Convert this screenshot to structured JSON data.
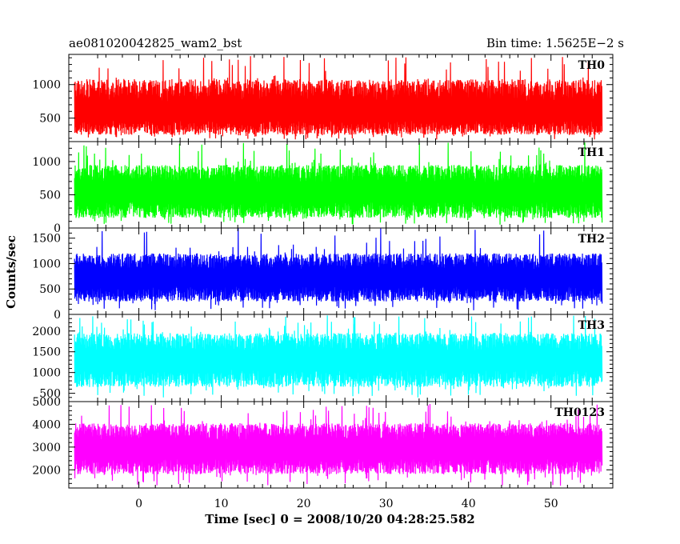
{
  "header": {
    "left_title": "ae081020042825_wam2_bst",
    "right_title": "Bin time: 1.5625E−2 s"
  },
  "axes": {
    "xlabel": "Time [sec] 0 = 2008/10/20 04:28:25.582",
    "ylabel": "Counts/sec"
  },
  "chart_data": [
    {
      "type": "line",
      "name": "TH0",
      "color": "#ff0000",
      "xlim": [
        -8.5,
        57.5
      ],
      "ylim": [
        150,
        1450
      ],
      "yticks": [
        500,
        1000
      ],
      "xticks": [
        0,
        10,
        20,
        30,
        40,
        50
      ],
      "x_range_data": [
        -7.8,
        56.2
      ],
      "level": 580,
      "base_min": 250,
      "base_max": 1080,
      "spike_max": 1450,
      "dip_min": 180
    },
    {
      "type": "line",
      "name": "TH1",
      "color": "#00ff00",
      "xlim": [
        -8.5,
        57.5
      ],
      "ylim": [
        0,
        1300
      ],
      "yticks": [
        0,
        500,
        1000
      ],
      "xticks": [
        0,
        10,
        20,
        30,
        40,
        50
      ],
      "x_range_data": [
        -7.8,
        56.2
      ],
      "level": 530,
      "base_min": 150,
      "base_max": 950,
      "spike_max": 1300,
      "dip_min": 50
    },
    {
      "type": "line",
      "name": "TH2",
      "color": "#0000ff",
      "xlim": [
        -8.5,
        57.5
      ],
      "ylim": [
        0,
        1700
      ],
      "yticks": [
        0,
        500,
        1000,
        1500
      ],
      "xticks": [
        0,
        10,
        20,
        30,
        40,
        50
      ],
      "x_range_data": [
        -7.8,
        56.2
      ],
      "level": 720,
      "base_min": 250,
      "base_max": 1200,
      "spike_max": 1700,
      "dip_min": 80
    },
    {
      "type": "line",
      "name": "TH3",
      "color": "#00ffff",
      "xlim": [
        -8.5,
        57.5
      ],
      "ylim": [
        300,
        2400
      ],
      "yticks": [
        500,
        1000,
        1500,
        2000
      ],
      "xticks": [
        0,
        10,
        20,
        30,
        40,
        50
      ],
      "x_range_data": [
        -7.8,
        56.2
      ],
      "level": 1300,
      "base_min": 650,
      "base_max": 1950,
      "spike_max": 2400,
      "dip_min": 400
    },
    {
      "type": "line",
      "name": "TH0123",
      "color": "#ff00ff",
      "xlim": [
        -8.5,
        57.5
      ],
      "ylim": [
        1200,
        5000
      ],
      "yticks": [
        2000,
        3000,
        4000,
        5000
      ],
      "xticks": [
        0,
        10,
        20,
        30,
        40,
        50
      ],
      "x_range_data": [
        -7.8,
        56.2
      ],
      "level": 2900,
      "base_min": 1800,
      "base_max": 4050,
      "spike_max": 4900,
      "dip_min": 1300
    }
  ]
}
